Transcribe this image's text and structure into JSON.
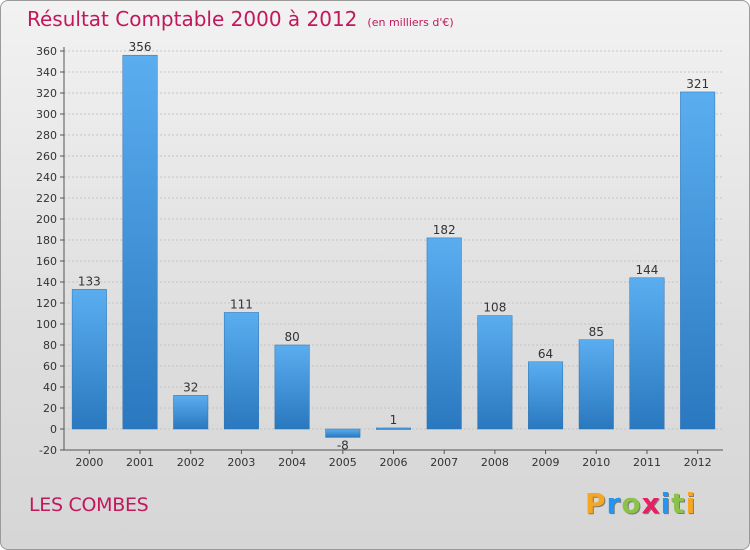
{
  "title": "Résultat Comptable 2000 à 2012",
  "unit": "(en milliers d'€)",
  "location": "LES COMBES",
  "logo": {
    "letters": [
      "P",
      "r",
      "o",
      "x",
      "i",
      "t",
      "i"
    ],
    "colors": [
      "#f5a623",
      "#2196f3",
      "#8bc34a",
      "#e91e63",
      "#2196f3",
      "#8bc34a",
      "#f5a623"
    ]
  },
  "chart_data": {
    "type": "bar",
    "categories": [
      "2000",
      "2001",
      "2002",
      "2003",
      "2004",
      "2005",
      "2006",
      "2007",
      "2008",
      "2009",
      "2010",
      "2011",
      "2012"
    ],
    "values": [
      133,
      356,
      32,
      111,
      80,
      -8,
      1,
      182,
      108,
      64,
      85,
      144,
      321
    ],
    "ylim": [
      -20,
      360
    ],
    "yticks": [
      -20,
      0,
      20,
      40,
      60,
      80,
      100,
      120,
      140,
      160,
      180,
      200,
      220,
      240,
      260,
      280,
      300,
      320,
      340,
      360
    ],
    "grid": true,
    "bar_color": "#3a8fd8"
  }
}
